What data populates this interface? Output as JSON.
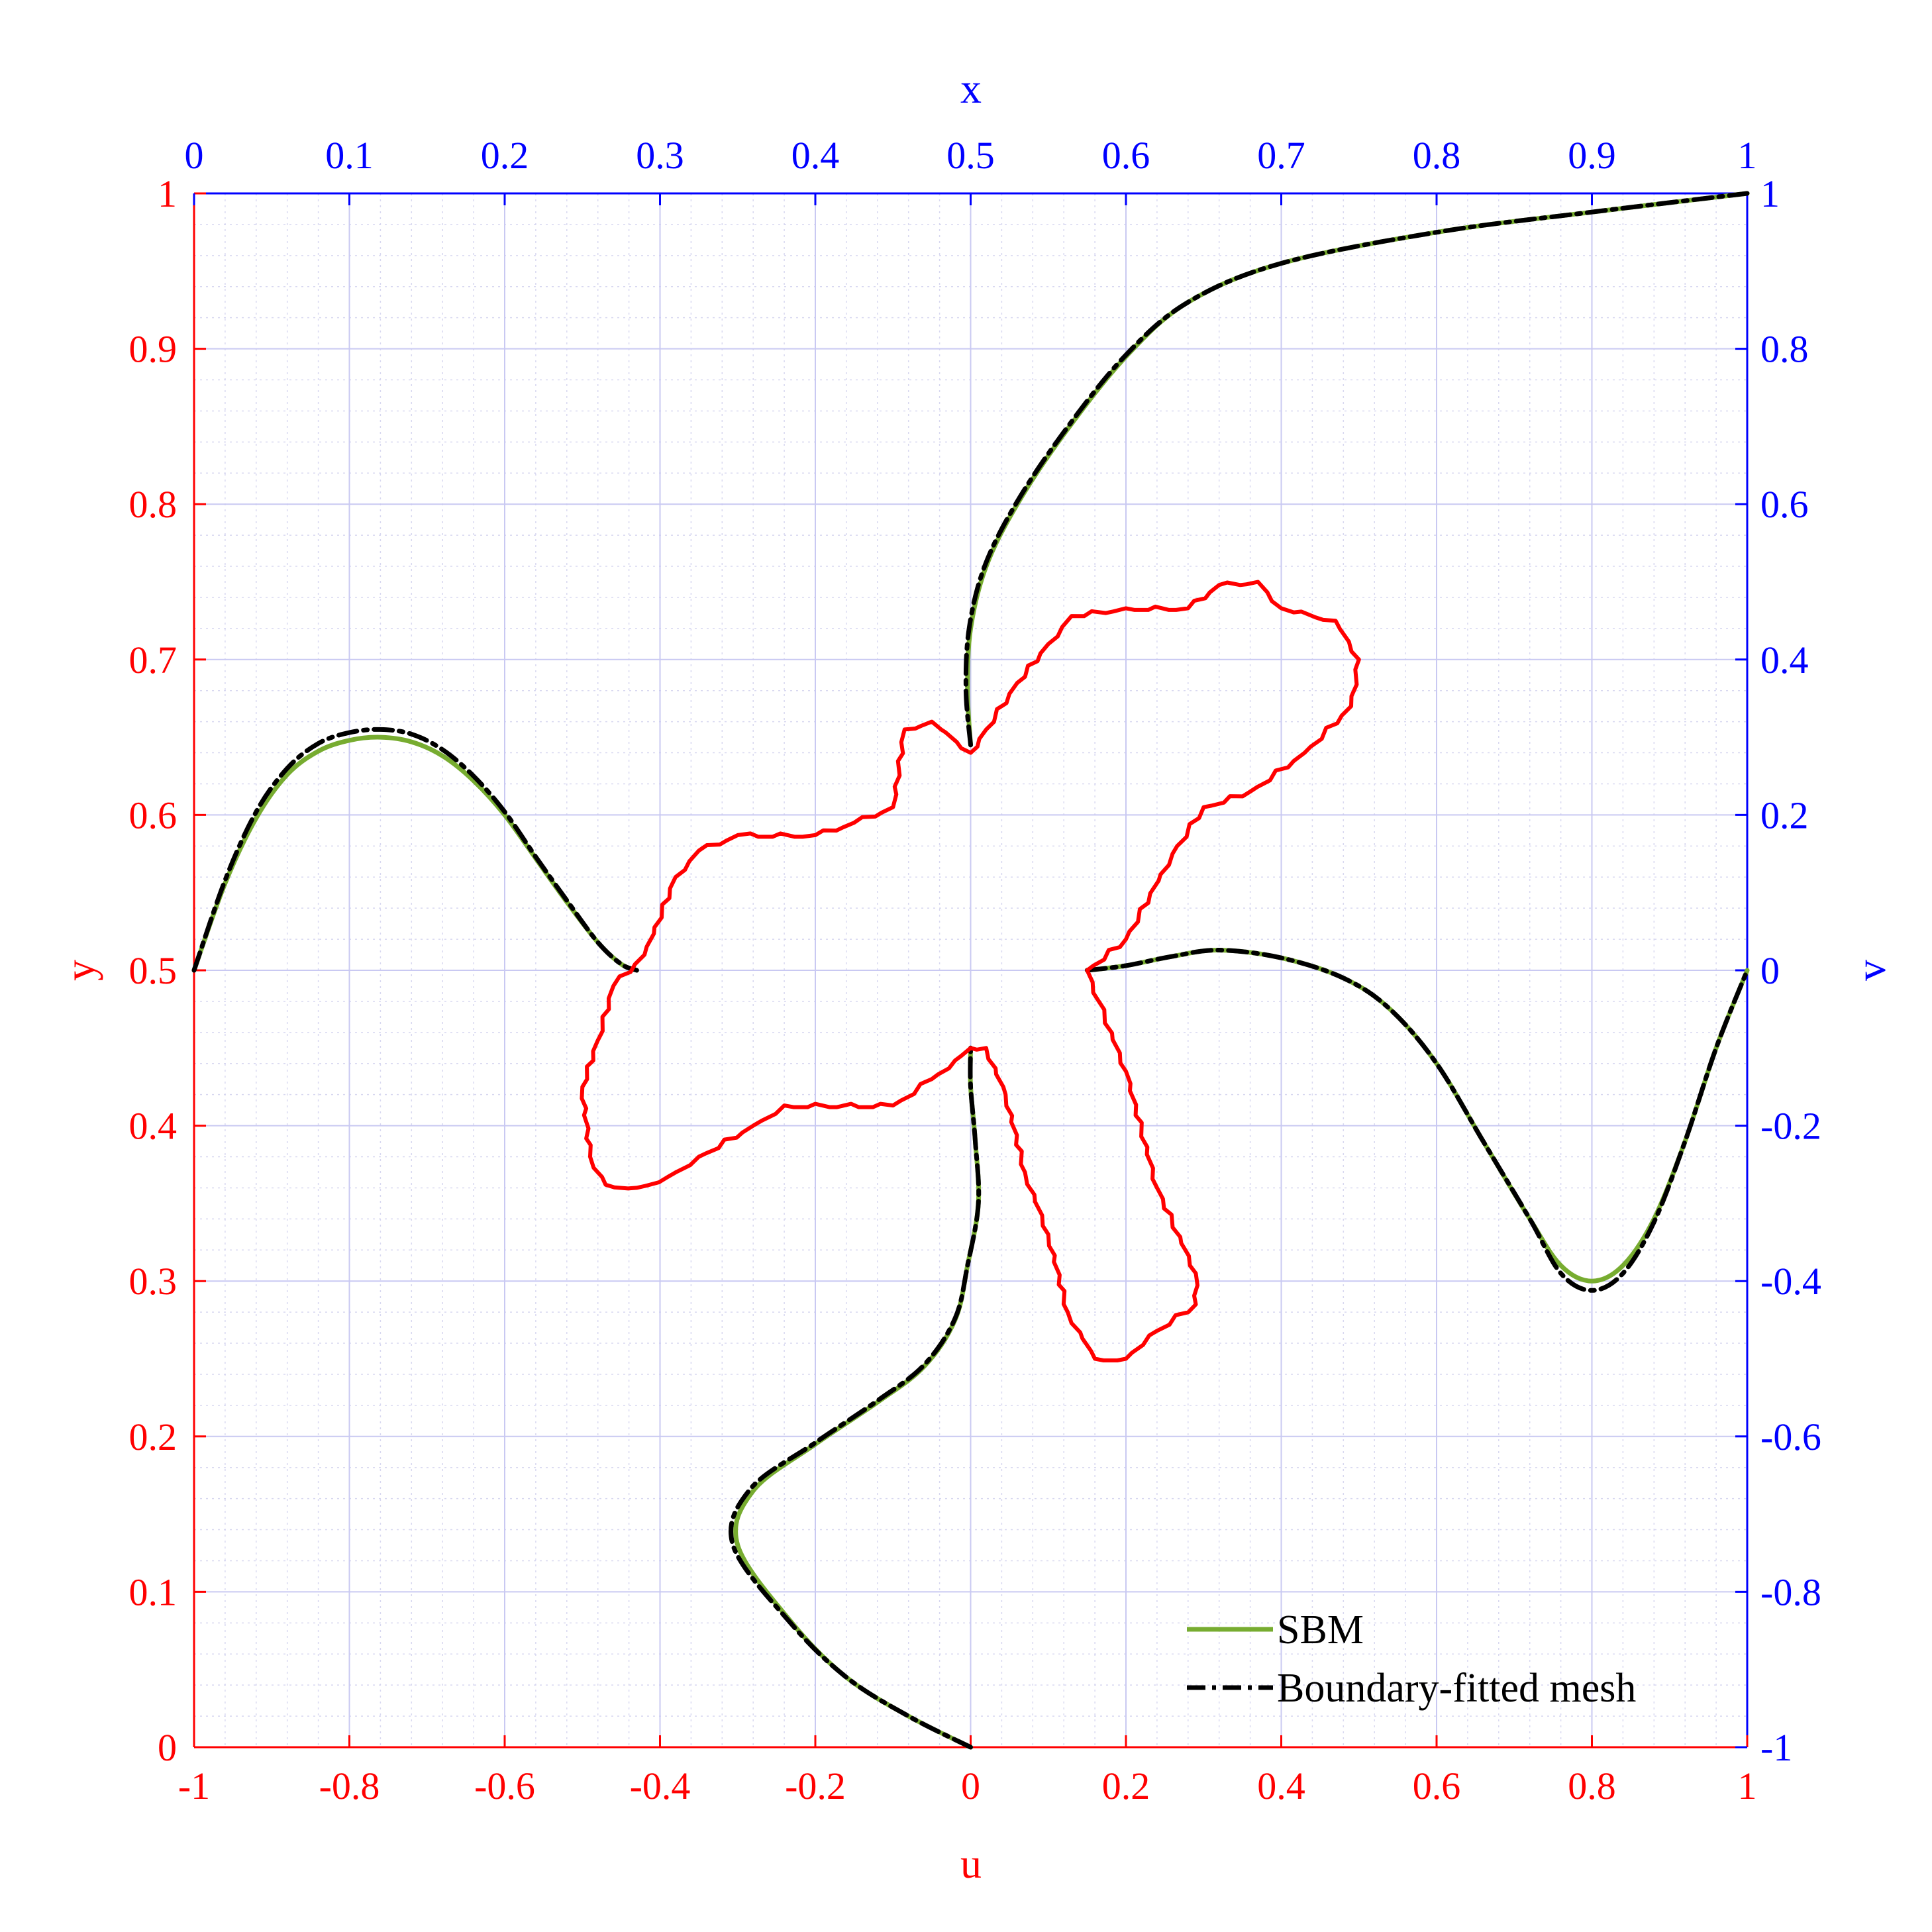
{
  "chart_data": {
    "type": "line",
    "axes": {
      "bottom": {
        "label": "u",
        "range": [
          -1,
          1
        ],
        "ticks": [
          "-1",
          "-0.8",
          "-0.6",
          "-0.4",
          "-0.2",
          "0",
          "0.2",
          "0.4",
          "0.6",
          "0.8",
          "1"
        ],
        "color": "#ff0000"
      },
      "left": {
        "label": "y",
        "range": [
          0,
          1
        ],
        "ticks": [
          "0",
          "0.1",
          "0.2",
          "0.3",
          "0.4",
          "0.5",
          "0.6",
          "0.7",
          "0.8",
          "0.9",
          "1"
        ],
        "color": "#ff0000"
      },
      "top": {
        "label": "x",
        "range": [
          0,
          1
        ],
        "ticks": [
          "0",
          "0.1",
          "0.2",
          "0.3",
          "0.4",
          "0.5",
          "0.6",
          "0.7",
          "0.8",
          "0.9",
          "1"
        ],
        "color": "#0000ff"
      },
      "right": {
        "label": "v",
        "range": [
          -1,
          1
        ],
        "ticks": [
          "-1",
          "-0.8",
          "-0.6",
          "-0.4",
          "-0.2",
          "0",
          "0.2",
          "0.4",
          "0.6",
          "0.8",
          "1"
        ],
        "color": "#0000ff"
      }
    },
    "grid": true,
    "legend_placement": "bottom-right",
    "series": [
      {
        "name": "SBM",
        "style": "solid",
        "color": "#77ac30",
        "frame": "x-y",
        "curves": [
          [
            [
              0,
              0.5
            ],
            [
              0.02,
              0.556
            ],
            [
              0.04,
              0.598
            ],
            [
              0.06,
              0.626
            ],
            [
              0.08,
              0.641
            ],
            [
              0.1,
              0.648
            ],
            [
              0.12,
              0.65
            ],
            [
              0.14,
              0.647
            ],
            [
              0.16,
              0.638
            ],
            [
              0.18,
              0.622
            ],
            [
              0.2,
              0.6
            ],
            [
              0.22,
              0.572
            ],
            [
              0.24,
              0.544
            ],
            [
              0.26,
              0.518
            ],
            [
              0.275,
              0.504
            ],
            [
              0.285,
              0.5
            ]
          ],
          [
            [
              0.5,
              0
            ],
            [
              0.46,
              0.02
            ],
            [
              0.42,
              0.045
            ],
            [
              0.385,
              0.08
            ],
            [
              0.35,
              0.13
            ],
            [
              0.36,
              0.165
            ],
            [
              0.4,
              0.195
            ],
            [
              0.44,
              0.222
            ],
            [
              0.47,
              0.245
            ],
            [
              0.49,
              0.275
            ],
            [
              0.498,
              0.31
            ],
            [
              0.505,
              0.35
            ],
            [
              0.503,
              0.39
            ],
            [
              0.5,
              0.425
            ],
            [
              0.5,
              0.45
            ]
          ],
          [
            [
              0.575,
              0.5
            ],
            [
              0.6,
              0.503
            ],
            [
              0.63,
              0.509
            ],
            [
              0.66,
              0.513
            ],
            [
              0.7,
              0.508
            ],
            [
              0.74,
              0.495
            ],
            [
              0.77,
              0.475
            ],
            [
              0.8,
              0.44
            ],
            [
              0.83,
              0.39
            ],
            [
              0.86,
              0.34
            ],
            [
              0.88,
              0.31
            ],
            [
              0.9,
              0.3
            ],
            [
              0.92,
              0.31
            ],
            [
              0.94,
              0.34
            ],
            [
              0.96,
              0.39
            ],
            [
              0.98,
              0.45
            ],
            [
              1,
              0.5
            ]
          ],
          [
            [
              0.5,
              0.645
            ],
            [
              0.498,
              0.68
            ],
            [
              0.5,
              0.72
            ],
            [
              0.51,
              0.76
            ],
            [
              0.53,
              0.8
            ],
            [
              0.56,
              0.845
            ],
            [
              0.6,
              0.895
            ],
            [
              0.64,
              0.93
            ],
            [
              0.7,
              0.955
            ],
            [
              0.8,
              0.975
            ],
            [
              0.9,
              0.988
            ],
            [
              1,
              1
            ]
          ]
        ]
      },
      {
        "name": "Boundary-fitted mesh",
        "style": "dash-dot",
        "color": "#000000",
        "frame": "x-y",
        "curves": [
          [
            [
              0,
              0.5
            ],
            [
              0.02,
              0.558
            ],
            [
              0.04,
              0.602
            ],
            [
              0.06,
              0.63
            ],
            [
              0.08,
              0.646
            ],
            [
              0.1,
              0.653
            ],
            [
              0.12,
              0.655
            ],
            [
              0.14,
              0.652
            ],
            [
              0.16,
              0.642
            ],
            [
              0.18,
              0.625
            ],
            [
              0.2,
              0.602
            ],
            [
              0.22,
              0.573
            ],
            [
              0.24,
              0.545
            ],
            [
              0.26,
              0.518
            ],
            [
              0.275,
              0.504
            ],
            [
              0.285,
              0.5
            ]
          ],
          [
            [
              0.5,
              0
            ],
            [
              0.46,
              0.02
            ],
            [
              0.42,
              0.045
            ],
            [
              0.384,
              0.08
            ],
            [
              0.347,
              0.13
            ],
            [
              0.358,
              0.166
            ],
            [
              0.4,
              0.196
            ],
            [
              0.44,
              0.223
            ],
            [
              0.47,
              0.246
            ],
            [
              0.49,
              0.276
            ],
            [
              0.498,
              0.31
            ],
            [
              0.505,
              0.35
            ],
            [
              0.503,
              0.39
            ],
            [
              0.5,
              0.425
            ],
            [
              0.5,
              0.45
            ]
          ],
          [
            [
              0.575,
              0.5
            ],
            [
              0.6,
              0.503
            ],
            [
              0.63,
              0.509
            ],
            [
              0.66,
              0.513
            ],
            [
              0.7,
              0.508
            ],
            [
              0.74,
              0.495
            ],
            [
              0.77,
              0.475
            ],
            [
              0.8,
              0.44
            ],
            [
              0.83,
              0.39
            ],
            [
              0.86,
              0.34
            ],
            [
              0.88,
              0.305
            ],
            [
              0.9,
              0.294
            ],
            [
              0.92,
              0.305
            ],
            [
              0.94,
              0.338
            ],
            [
              0.96,
              0.39
            ],
            [
              0.98,
              0.45
            ],
            [
              1,
              0.5
            ]
          ],
          [
            [
              0.5,
              0.645
            ],
            [
              0.497,
              0.68
            ],
            [
              0.499,
              0.72
            ],
            [
              0.509,
              0.76
            ],
            [
              0.529,
              0.8
            ],
            [
              0.559,
              0.845
            ],
            [
              0.599,
              0.895
            ],
            [
              0.64,
              0.93
            ],
            [
              0.7,
              0.955
            ],
            [
              0.8,
              0.975
            ],
            [
              0.9,
              0.988
            ],
            [
              1,
              1
            ]
          ]
        ]
      },
      {
        "style": "solid",
        "color": "#ff0000",
        "frame": "u-y",
        "closed": true,
        "points": [
          [
            0,
            0.45
          ],
          [
            0.02,
            0.45
          ],
          [
            0.045,
            0.42
          ],
          [
            0.07,
            0.37
          ],
          [
            0.1,
            0.33
          ],
          [
            0.125,
            0.28
          ],
          [
            0.16,
            0.25
          ],
          [
            0.2,
            0.25
          ],
          [
            0.23,
            0.265
          ],
          [
            0.29,
            0.285
          ],
          [
            0.29,
            0.305
          ],
          [
            0.24,
            0.36
          ],
          [
            0.2,
            0.435
          ],
          [
            0.165,
            0.48
          ],
          [
            0.15,
            0.5
          ],
          [
            0.2,
            0.52
          ],
          [
            0.26,
            0.575
          ],
          [
            0.3,
            0.605
          ],
          [
            0.36,
            0.615
          ],
          [
            0.43,
            0.64
          ],
          [
            0.49,
            0.67
          ],
          [
            0.5,
            0.7
          ],
          [
            0.47,
            0.725
          ],
          [
            0.4,
            0.733
          ],
          [
            0.37,
            0.75
          ],
          [
            0.32,
            0.748
          ],
          [
            0.28,
            0.733
          ],
          [
            0.2,
            0.733
          ],
          [
            0.13,
            0.728
          ],
          [
            0.1,
            0.71
          ],
          [
            0.06,
            0.685
          ],
          [
            0.02,
            0.655
          ],
          [
            0,
            0.64
          ],
          [
            -0.05,
            0.66
          ],
          [
            -0.085,
            0.655
          ],
          [
            -0.1,
            0.605
          ],
          [
            -0.15,
            0.595
          ],
          [
            -0.2,
            0.587
          ],
          [
            -0.3,
            0.587
          ],
          [
            -0.35,
            0.577
          ],
          [
            -0.38,
            0.56
          ],
          [
            -0.42,
            0.51
          ],
          [
            -0.46,
            0.49
          ],
          [
            -0.48,
            0.455
          ],
          [
            -0.5,
            0.425
          ],
          [
            -0.49,
            0.38
          ],
          [
            -0.47,
            0.362
          ],
          [
            -0.43,
            0.36
          ],
          [
            -0.39,
            0.367
          ],
          [
            -0.35,
            0.38
          ],
          [
            -0.28,
            0.4
          ],
          [
            -0.24,
            0.413
          ],
          [
            -0.1,
            0.413
          ],
          [
            -0.05,
            0.43
          ],
          [
            -0.02,
            0.442
          ],
          [
            0,
            0.45
          ]
        ]
      }
    ],
    "legend": [
      "SBM",
      "Boundary-fitted mesh"
    ]
  }
}
